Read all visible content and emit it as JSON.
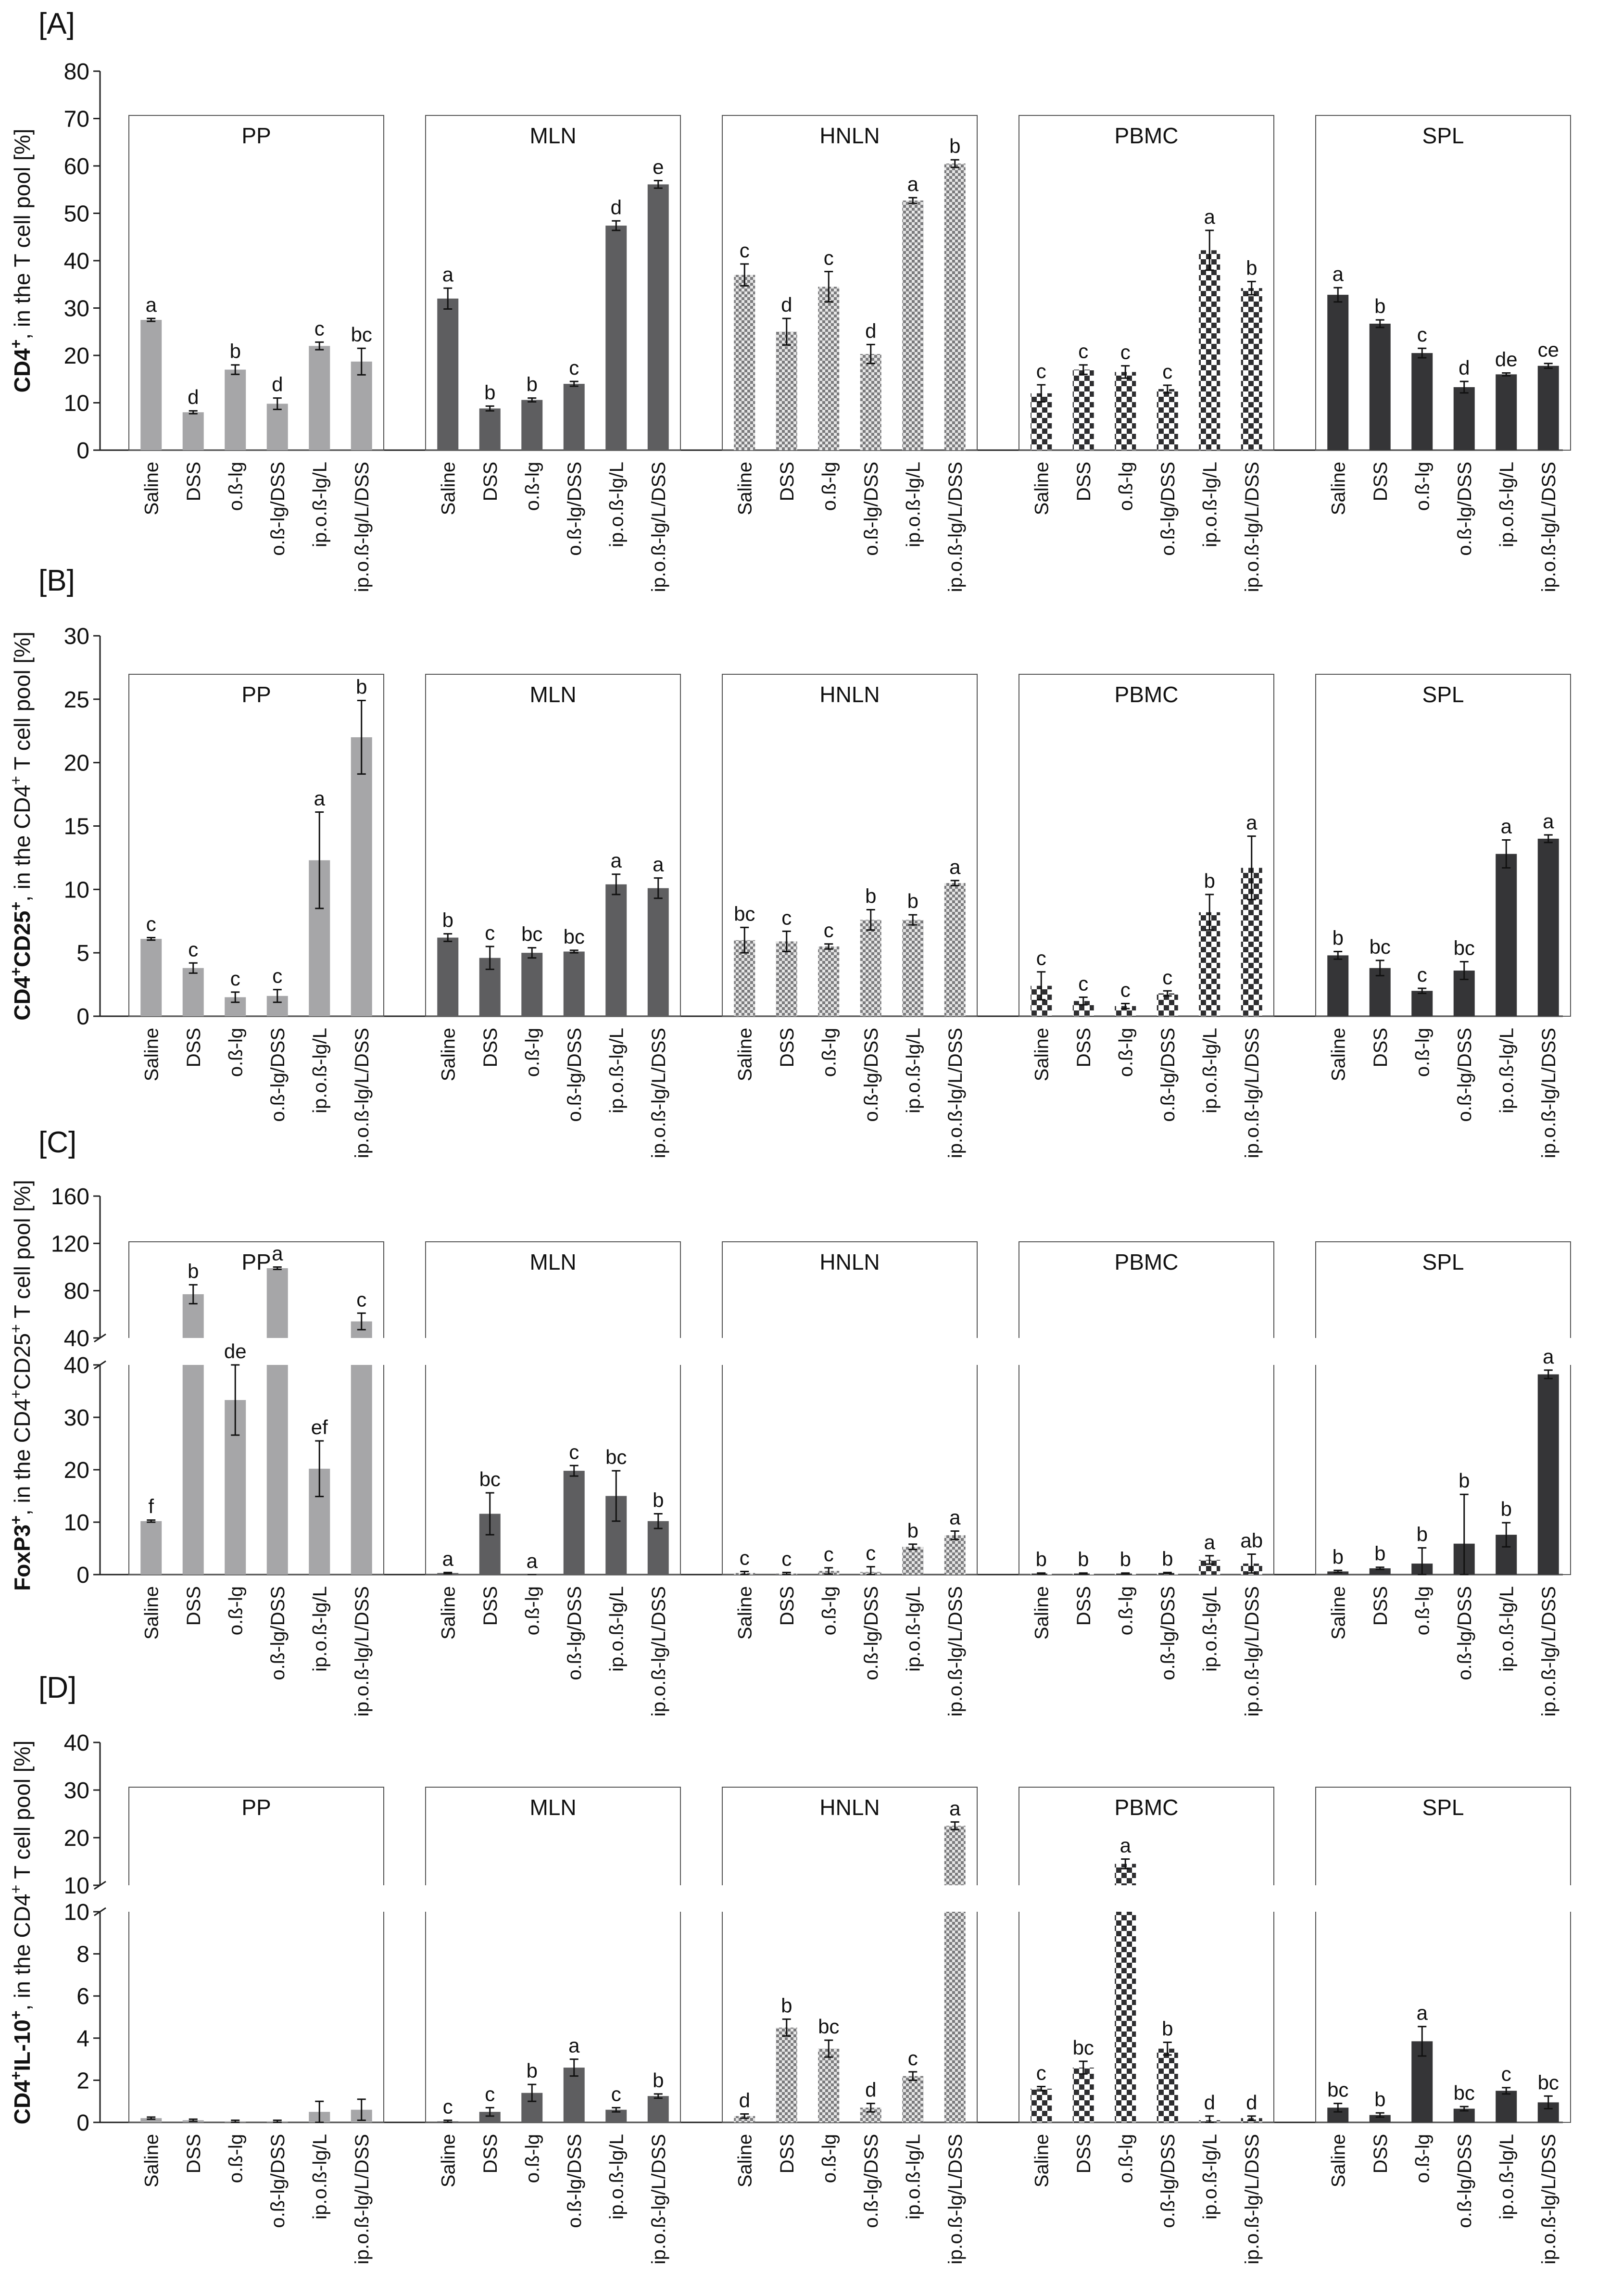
{
  "groups": [
    "Saline",
    "DSS",
    "o.ß-lg",
    "o.ß-lg/DSS",
    "ip.o.ß-lg/L",
    "ip.o.ß-lg/L/DSS"
  ],
  "tissues": [
    "PP",
    "MLN",
    "HNLN",
    "PBMC",
    "SPL"
  ],
  "colors": {
    "PP": "#a6a6a8",
    "MLN": "#5e5e60",
    "HNLN": "#c9c9cb",
    "PBMC": "#3b3b3d",
    "SPL": "#353537",
    "hatch_light": "#e6e6e6",
    "axis": "#222222"
  },
  "fill_styles": {
    "PP": "solid",
    "MLN": "solid",
    "HNLN": "check-fine",
    "PBMC": "check-coarse",
    "SPL": "solid"
  },
  "chart_data": [
    {
      "type": "bar",
      "panel_label": "[A]",
      "ylabel_main": "CD4",
      "ylabel_sup": "+",
      "ylabel_rest": ", in the T cell pool [%]",
      "ylim": [
        0,
        80
      ],
      "yticks": [
        "0",
        "10",
        "20",
        "30",
        "40",
        "50",
        "60",
        "70",
        "80"
      ],
      "ytick_values": [
        0,
        10,
        20,
        30,
        40,
        50,
        60,
        70,
        80
      ],
      "series": [
        {
          "name": "PP",
          "values": [
            27.5,
            8,
            17,
            9.8,
            22,
            18.7
          ],
          "errors": [
            0.3,
            0.3,
            1,
            1.2,
            0.8,
            2.8
          ],
          "letters": [
            "a",
            "d",
            "b",
            "d",
            "c",
            "bc"
          ]
        },
        {
          "name": "MLN",
          "values": [
            32,
            8.8,
            10.6,
            14,
            47.4,
            56.1
          ],
          "errors": [
            2.2,
            0.5,
            0.4,
            0.5,
            1,
            0.8
          ],
          "letters": [
            "a",
            "b",
            "b",
            "c",
            "d",
            "e"
          ]
        },
        {
          "name": "HNLN",
          "values": [
            37,
            25,
            34.5,
            20.3,
            52.7,
            60.5
          ],
          "errors": [
            2.3,
            2.8,
            3.2,
            2,
            0.6,
            0.8
          ],
          "letters": [
            "c",
            "d",
            "c",
            "d",
            "a",
            "b"
          ]
        },
        {
          "name": "PBMC",
          "values": [
            12,
            17,
            16.5,
            12.9,
            42.2,
            34.2
          ],
          "errors": [
            1.8,
            1,
            1.3,
            0.8,
            4.2,
            1.4
          ],
          "letters": [
            "c",
            "c",
            "c",
            "c",
            "a",
            "b"
          ]
        },
        {
          "name": "SPL",
          "values": [
            32.8,
            26.7,
            20.5,
            13.3,
            16,
            17.8
          ],
          "errors": [
            1.5,
            0.8,
            1,
            1.2,
            0.3,
            0.5
          ],
          "letters": [
            "a",
            "b",
            "c",
            "d",
            "de",
            "ce"
          ]
        }
      ]
    },
    {
      "type": "bar",
      "panel_label": "[B]",
      "ylabel_main": "CD4",
      "ylabel_sup": "+",
      "ylabel_main2": "CD25",
      "ylabel_sup2": "+",
      "ylabel_rest": ", in the CD4",
      "ylabel_sup3": "+",
      "ylabel_rest2": " T cell pool [%]",
      "ylim": [
        0,
        30
      ],
      "yticks": [
        "0",
        "5",
        "10",
        "15",
        "20",
        "25",
        "30"
      ],
      "ytick_values": [
        0,
        5,
        10,
        15,
        20,
        25,
        30
      ],
      "series": [
        {
          "name": "PP",
          "values": [
            6.1,
            3.8,
            1.5,
            1.6,
            12.3,
            22
          ],
          "errors": [
            0.1,
            0.4,
            0.4,
            0.5,
            3.8,
            2.9
          ],
          "letters": [
            "c",
            "c",
            "c",
            "c",
            "a",
            "b"
          ]
        },
        {
          "name": "MLN",
          "values": [
            6.2,
            4.6,
            5,
            5.1,
            10.4,
            10.1
          ],
          "errors": [
            0.3,
            0.9,
            0.4,
            0.1,
            0.8,
            0.8
          ],
          "letters": [
            "b",
            "c",
            "bc",
            "bc",
            "a",
            "a"
          ]
        },
        {
          "name": "HNLN",
          "values": [
            6,
            5.9,
            5.5,
            7.6,
            7.6,
            10.5
          ],
          "errors": [
            1,
            0.8,
            0.2,
            0.8,
            0.4,
            0.2
          ],
          "letters": [
            "bc",
            "c",
            "c",
            "b",
            "b",
            "a"
          ]
        },
        {
          "name": "PBMC",
          "values": [
            2.4,
            1.2,
            0.8,
            1.8,
            8.2,
            11.7
          ],
          "errors": [
            1.1,
            0.3,
            0.2,
            0.2,
            1.4,
            2.5
          ],
          "letters": [
            "c",
            "c",
            "c",
            "c",
            "b",
            "a"
          ]
        },
        {
          "name": "SPL",
          "values": [
            4.8,
            3.8,
            2,
            3.6,
            12.8,
            14
          ],
          "errors": [
            0.3,
            0.6,
            0.2,
            0.7,
            1.1,
            0.3
          ],
          "letters": [
            "b",
            "bc",
            "c",
            "bc",
            "a",
            "a"
          ]
        }
      ]
    },
    {
      "type": "bar",
      "panel_label": "[C]",
      "broken_axis": true,
      "ylabel_main": "FoxP3",
      "ylabel_sup": "+",
      "ylabel_rest": ", in the CD4",
      "ylabel_sup2": "+",
      "ylabel_main2": "CD25",
      "ylabel_sup3": "+",
      "ylabel_rest2": " T cell pool [%]",
      "ylim_lower": [
        0,
        40
      ],
      "ylim_upper": [
        40,
        160
      ],
      "yticks_lower": [
        "0",
        "10",
        "20",
        "30",
        "40"
      ],
      "ytick_values_lower": [
        0,
        10,
        20,
        30,
        40
      ],
      "yticks_upper": [
        "40",
        "80",
        "120",
        "160"
      ],
      "ytick_values_upper": [
        40,
        80,
        120,
        160
      ],
      "series": [
        {
          "name": "PP",
          "values": [
            10.2,
            77,
            33.3,
            99,
            20.2,
            54
          ],
          "errors": [
            0.2,
            8,
            6.7,
            1,
            5.3,
            7
          ],
          "letters": [
            "f",
            "b",
            "de",
            "a",
            "ef",
            "c"
          ]
        },
        {
          "name": "MLN",
          "values": [
            0.3,
            11.6,
            0,
            19.8,
            15,
            10.2
          ],
          "errors": [
            0.1,
            4,
            0,
            1,
            4.8,
            1.4
          ],
          "letters": [
            "a",
            "bc",
            "a",
            "c",
            "bc",
            "b"
          ]
        },
        {
          "name": "HNLN",
          "values": [
            0.3,
            0.2,
            0.7,
            0.5,
            5.3,
            7.5
          ],
          "errors": [
            0.3,
            0.2,
            0.6,
            1,
            0.5,
            0.8
          ],
          "letters": [
            "c",
            "c",
            "c",
            "c",
            "b",
            "a"
          ]
        },
        {
          "name": "PBMC",
          "values": [
            0.2,
            0.2,
            0.2,
            0.3,
            2.8,
            2.1
          ],
          "errors": [
            0.1,
            0.1,
            0.1,
            0.1,
            0.8,
            1.8
          ],
          "letters": [
            "b",
            "b",
            "b",
            "b",
            "a",
            "ab"
          ]
        },
        {
          "name": "SPL",
          "values": [
            0.6,
            1.2,
            2.1,
            5.9,
            7.6,
            38.2
          ],
          "errors": [
            0.2,
            0.2,
            3,
            9.4,
            2.3,
            0.8
          ],
          "letters": [
            "b",
            "b",
            "b",
            "b",
            "b",
            "a"
          ]
        }
      ]
    },
    {
      "type": "bar",
      "panel_label": "[D]",
      "broken_axis": true,
      "ylabel_main": "CD4",
      "ylabel_sup": "+",
      "ylabel_main2": "IL-10",
      "ylabel_sup2": "+",
      "ylabel_rest": ", in the CD4",
      "ylabel_sup3": "+",
      "ylabel_rest2": " T cell pool [%]",
      "ylim_lower": [
        0,
        10
      ],
      "ylim_upper": [
        10,
        40
      ],
      "yticks_lower": [
        "0",
        "2",
        "4",
        "6",
        "8",
        "10"
      ],
      "ytick_values_lower": [
        0,
        2,
        4,
        6,
        8,
        10
      ],
      "yticks_upper": [
        "10",
        "20",
        "30",
        "40"
      ],
      "ytick_values_upper": [
        10,
        20,
        30,
        40
      ],
      "series": [
        {
          "name": "PP",
          "values": [
            0.2,
            0.1,
            0.05,
            0.05,
            0.5,
            0.6
          ],
          "errors": [
            0.05,
            0.05,
            0.05,
            0.05,
            0.5,
            0.5
          ],
          "letters": [
            "",
            "",
            "",
            "",
            "",
            ""
          ]
        },
        {
          "name": "MLN",
          "values": [
            0.05,
            0.5,
            1.4,
            2.6,
            0.6,
            1.25
          ],
          "errors": [
            0.05,
            0.2,
            0.4,
            0.4,
            0.1,
            0.1
          ],
          "letters": [
            "c",
            "c",
            "b",
            "a",
            "c",
            "b"
          ]
        },
        {
          "name": "HNLN",
          "values": [
            0.3,
            4.5,
            3.5,
            0.7,
            2.2,
            22.5
          ],
          "errors": [
            0.1,
            0.4,
            0.4,
            0.2,
            0.2,
            0.8
          ],
          "letters": [
            "d",
            "b",
            "bc",
            "d",
            "c",
            "a"
          ]
        },
        {
          "name": "PBMC",
          "values": [
            1.6,
            2.6,
            14.5,
            3.5,
            0.1,
            0.2
          ],
          "errors": [
            0.1,
            0.3,
            1,
            0.3,
            0.2,
            0.1
          ],
          "letters": [
            "c",
            "bc",
            "a",
            "b",
            "d",
            "d"
          ]
        },
        {
          "name": "SPL",
          "values": [
            0.7,
            0.35,
            3.85,
            0.65,
            1.5,
            0.95
          ],
          "errors": [
            0.2,
            0.1,
            0.7,
            0.1,
            0.15,
            0.3
          ],
          "letters": [
            "bc",
            "b",
            "a",
            "bc",
            "c",
            "bc"
          ]
        }
      ]
    }
  ]
}
